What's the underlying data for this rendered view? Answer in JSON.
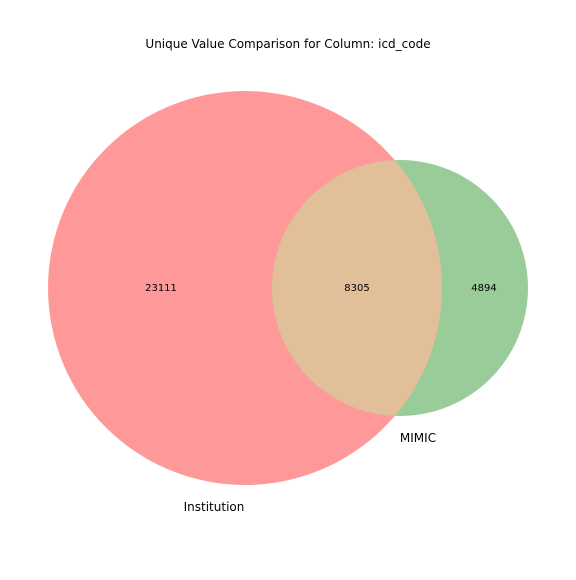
{
  "diagram": {
    "type": "venn2",
    "title": "Unique Value Comparison for Column: icd_code",
    "sets": [
      {
        "name": "Institution",
        "color": "#ff9999"
      },
      {
        "name": "MIMIC",
        "color": "#99cc99"
      }
    ],
    "regions": {
      "only_first": "23111",
      "intersection": "8305",
      "only_second": "4894"
    },
    "intersection_color": "#e1bf99"
  }
}
